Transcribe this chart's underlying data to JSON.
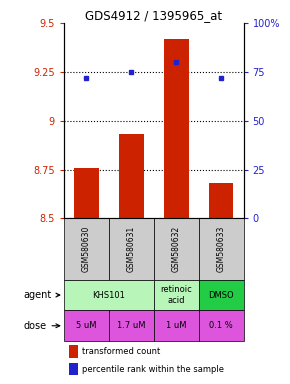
{
  "title": "GDS4912 / 1395965_at",
  "samples": [
    "GSM580630",
    "GSM580631",
    "GSM580632",
    "GSM580633"
  ],
  "bar_values": [
    8.76,
    8.93,
    9.42,
    8.68
  ],
  "dot_values": [
    72,
    75,
    80,
    72
  ],
  "ylim_left": [
    8.5,
    9.5
  ],
  "ylim_right": [
    0,
    100
  ],
  "yticks_left": [
    8.5,
    8.75,
    9.0,
    9.25,
    9.5
  ],
  "yticks_right": [
    0,
    25,
    50,
    75,
    100
  ],
  "ytick_labels_left": [
    "8.5",
    "8.75",
    "9",
    "9.25",
    "9.5"
  ],
  "ytick_labels_right": [
    "0",
    "25",
    "50",
    "75",
    "100%"
  ],
  "hlines": [
    8.75,
    9.0,
    9.25
  ],
  "agent_groups": [
    {
      "cols": [
        0,
        1
      ],
      "text": "KHS101",
      "color": "#b8f5b8"
    },
    {
      "cols": [
        2
      ],
      "text": "retinoic\nacid",
      "color": "#b8f5b8"
    },
    {
      "cols": [
        3
      ],
      "text": "DMSO",
      "color": "#22cc44"
    }
  ],
  "dose_labels": [
    "5 uM",
    "1.7 uM",
    "1 uM",
    "0.1 %"
  ],
  "dose_color": "#dd55dd",
  "bar_color": "#cc2200",
  "dot_color": "#2222cc",
  "sample_bg": "#cccccc",
  "legend_bar_label": "transformed count",
  "legend_dot_label": "percentile rank within the sample"
}
